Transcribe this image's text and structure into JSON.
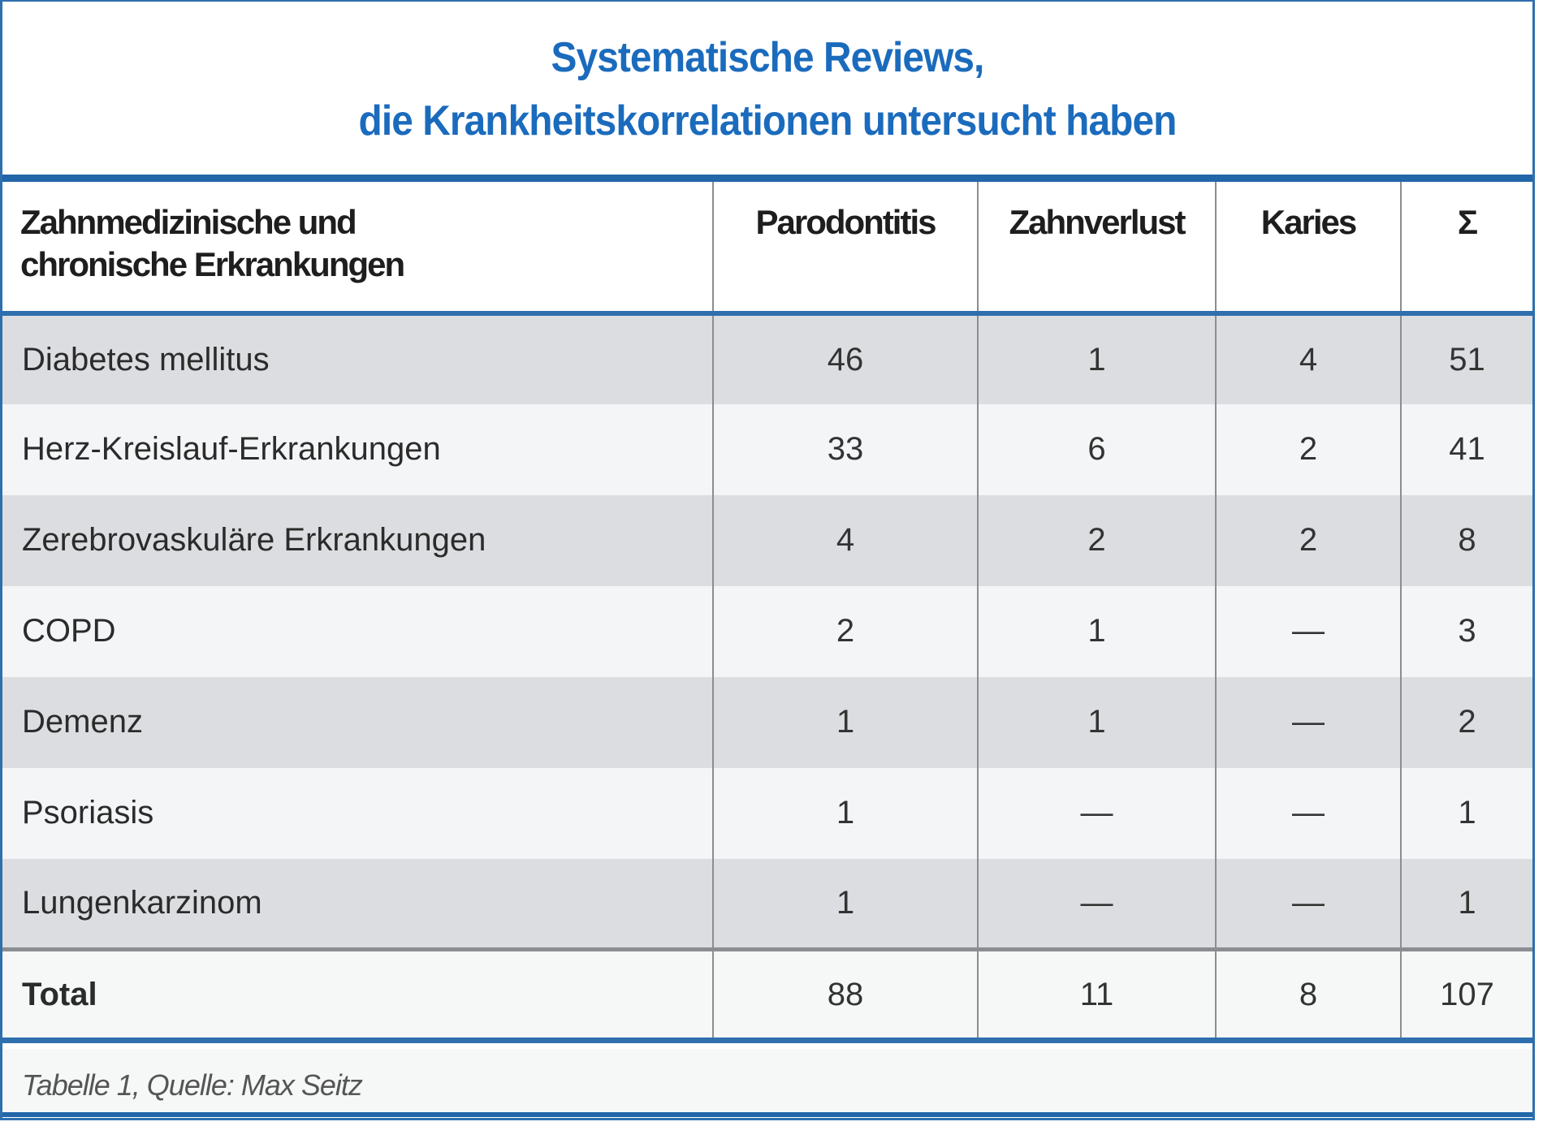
{
  "title": {
    "line1": "Systematische Reviews,",
    "line2": "die Krankheitskorrelationen untersucht haben"
  },
  "colors": {
    "accent": "#1b6bbd",
    "border": "#2f6fae",
    "row_odd": "#dcdde0",
    "row_even": "#f4f5f6"
  },
  "table": {
    "headers": {
      "c0_line1": "Zahnmedizinische und",
      "c0_line2": "chronische Erkrankungen",
      "c1": "Parodontitis",
      "c2": "Zahnverlust",
      "c3": "Karies",
      "c4": "Σ"
    },
    "rows": [
      [
        "Diabetes mellitus",
        "46",
        "1",
        "4",
        "51"
      ],
      [
        "Herz-Kreislauf-Erkrankungen",
        "33",
        "6",
        "2",
        "41"
      ],
      [
        "Zerebrovaskuläre Erkrankungen",
        "4",
        "2",
        "2",
        "8"
      ],
      [
        "COPD",
        "2",
        "1",
        "—",
        "3"
      ],
      [
        "Demenz",
        "1",
        "1",
        "—",
        "2"
      ],
      [
        "Psoriasis",
        "1",
        "—",
        "—",
        "1"
      ],
      [
        "Lungenkarzinom",
        "1",
        "—",
        "—",
        "1"
      ]
    ],
    "total": [
      "Total",
      "88",
      "11",
      "8",
      "107"
    ]
  },
  "footnote": "Tabelle 1, Quelle: Max Seitz"
}
